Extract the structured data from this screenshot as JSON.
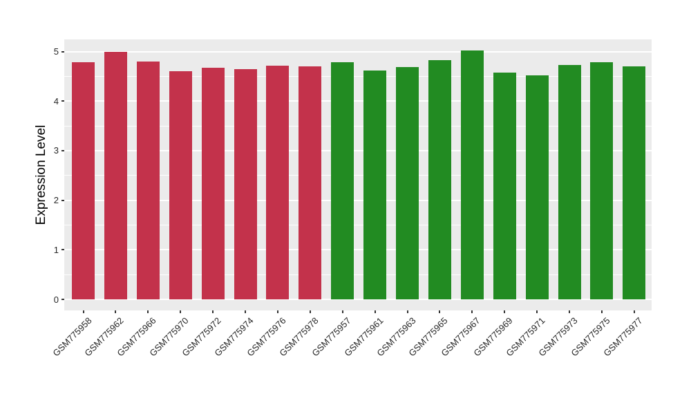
{
  "chart_data": {
    "type": "bar",
    "title": "",
    "xlabel": "",
    "ylabel": "Expression Level",
    "ylim": [
      0,
      5.25
    ],
    "yticks": [
      0,
      1,
      2,
      3,
      4,
      5
    ],
    "grid": {
      "major": "integers",
      "minor": "halves",
      "color": "#FFFFFF",
      "panel_background": "#EBEBEB"
    },
    "legend": "none",
    "group_colors": {
      "group1": "#C3324B",
      "group2": "#228B22"
    },
    "bars": [
      {
        "label": "GSM775958",
        "value": 4.78,
        "group": "group1"
      },
      {
        "label": "GSM775962",
        "value": 5.0,
        "group": "group1"
      },
      {
        "label": "GSM775966",
        "value": 4.8,
        "group": "group1"
      },
      {
        "label": "GSM775970",
        "value": 4.6,
        "group": "group1"
      },
      {
        "label": "GSM775972",
        "value": 4.67,
        "group": "group1"
      },
      {
        "label": "GSM775974",
        "value": 4.64,
        "group": "group1"
      },
      {
        "label": "GSM775976",
        "value": 4.72,
        "group": "group1"
      },
      {
        "label": "GSM775978",
        "value": 4.7,
        "group": "group1"
      },
      {
        "label": "GSM775957",
        "value": 4.78,
        "group": "group2"
      },
      {
        "label": "GSM775961",
        "value": 4.62,
        "group": "group2"
      },
      {
        "label": "GSM775963",
        "value": 4.69,
        "group": "group2"
      },
      {
        "label": "GSM775965",
        "value": 4.82,
        "group": "group2"
      },
      {
        "label": "GSM775967",
        "value": 5.02,
        "group": "group2"
      },
      {
        "label": "GSM775969",
        "value": 4.58,
        "group": "group2"
      },
      {
        "label": "GSM775971",
        "value": 4.52,
        "group": "group2"
      },
      {
        "label": "GSM775973",
        "value": 4.73,
        "group": "group2"
      },
      {
        "label": "GSM775975",
        "value": 4.78,
        "group": "group2"
      },
      {
        "label": "GSM775977",
        "value": 4.7,
        "group": "group2"
      }
    ]
  }
}
